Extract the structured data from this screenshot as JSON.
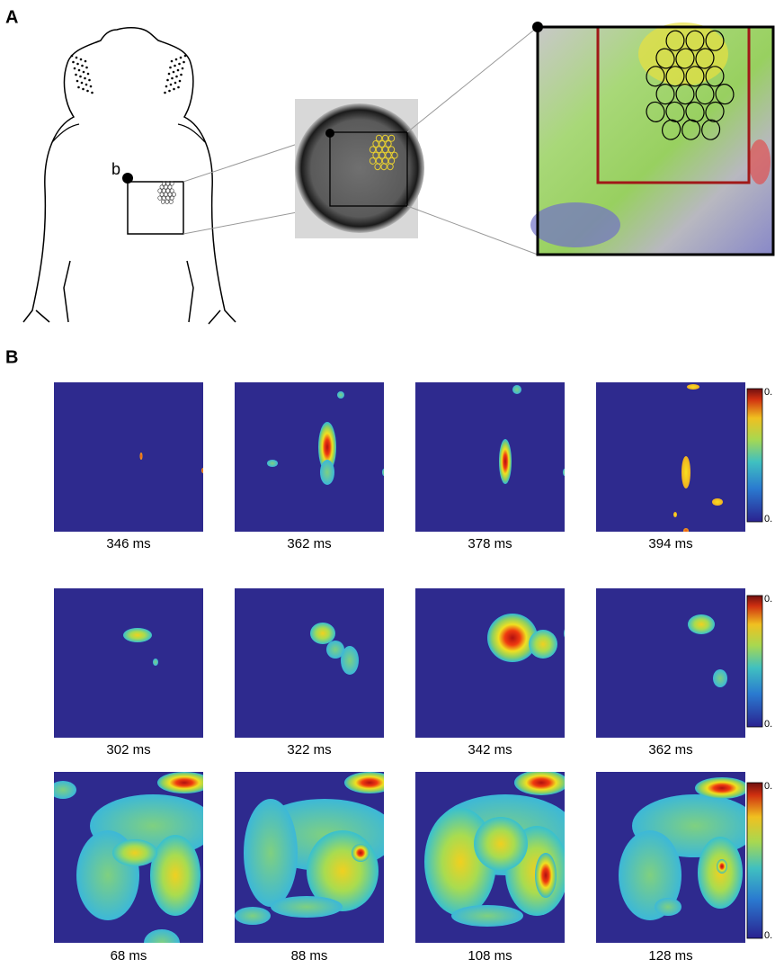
{
  "panel_a": {
    "label": "A",
    "marker_label": "b"
  },
  "panel_b": {
    "label": "B",
    "rows": [
      {
        "frames": [
          "346 ms",
          "362 ms",
          "378 ms",
          "394 ms"
        ],
        "colorbar_labels": [
          "0.",
          "0."
        ]
      },
      {
        "frames": [
          "302 ms",
          "322 ms",
          "342 ms",
          "362 ms"
        ],
        "colorbar_labels": [
          "0.",
          "0."
        ]
      },
      {
        "frames": [
          "68 ms",
          "88 ms",
          "108 ms",
          "128 ms"
        ],
        "colorbar_labels": [
          "0.",
          "0."
        ]
      }
    ]
  }
}
